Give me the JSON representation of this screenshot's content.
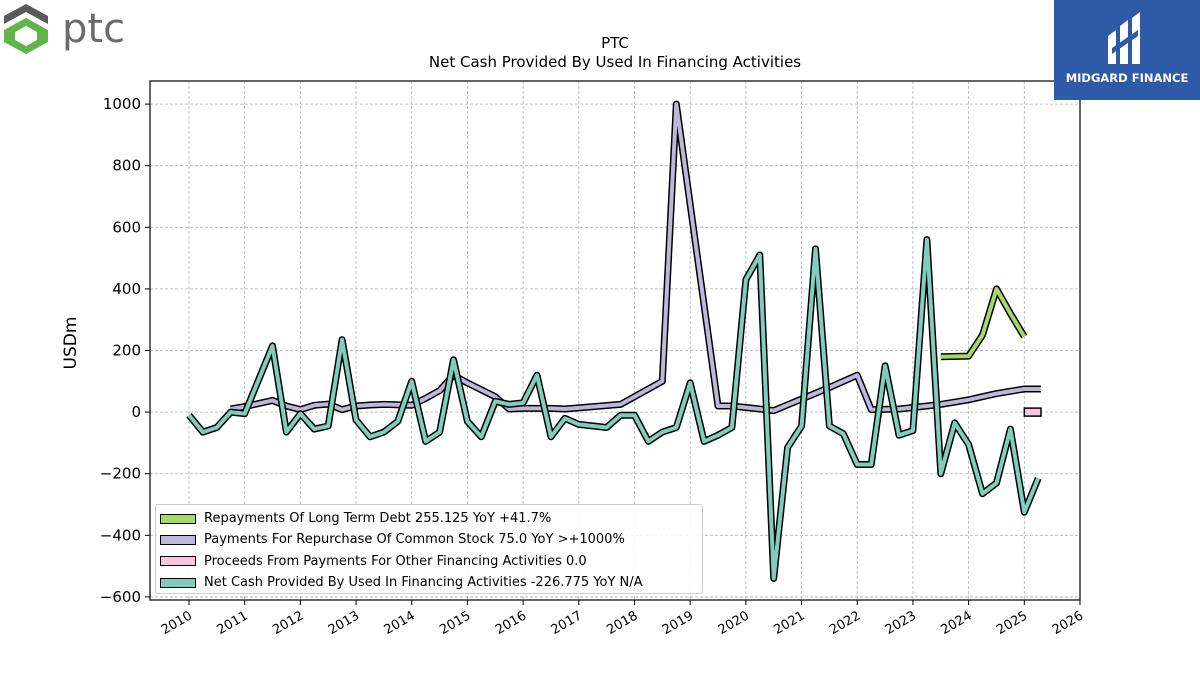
{
  "brand": {
    "left_logo_text": "ptc",
    "right_logo_text": "MIDGARD FINANCE",
    "right_logo_bg": "#2f5aa8"
  },
  "chart_data": {
    "type": "line",
    "title": "PTC",
    "subtitle": "Net Cash Provided By Used In Financing Activities",
    "ylabel": "USDm",
    "xlabel": "",
    "xlim": [
      2009.3,
      2026.0
    ],
    "ylim": [
      -610,
      1075
    ],
    "yticks": [
      -600,
      -400,
      -200,
      0,
      200,
      400,
      600,
      800,
      1000
    ],
    "xticks": [
      2010,
      2011,
      2012,
      2013,
      2014,
      2015,
      2016,
      2017,
      2018,
      2019,
      2020,
      2021,
      2022,
      2023,
      2024,
      2025,
      2026
    ],
    "grid": true,
    "legend_position": "bottom-left",
    "series": [
      {
        "name": "Repayments Of Long Term Debt",
        "legend_label": "Repayments Of Long Term Debt  255.125 YoY +41.7%",
        "color": "#a6d96a",
        "points": [
          [
            2023.5,
            180
          ],
          [
            2024.0,
            182
          ],
          [
            2024.25,
            250
          ],
          [
            2024.5,
            400
          ],
          [
            2024.75,
            320
          ],
          [
            2025.0,
            245
          ]
        ]
      },
      {
        "name": "Payments For Repurchase Of Common Stock",
        "legend_label": "Payments For Repurchase Of Common Stock  75.0 YoY >+1000%",
        "color": "#bcb8d9",
        "points": [
          [
            2010.75,
            10
          ],
          [
            2011.0,
            18
          ],
          [
            2011.5,
            38
          ],
          [
            2011.75,
            20
          ],
          [
            2012.0,
            8
          ],
          [
            2012.25,
            22
          ],
          [
            2012.5,
            26
          ],
          [
            2012.75,
            8
          ],
          [
            2013.0,
            20
          ],
          [
            2013.25,
            23
          ],
          [
            2013.5,
            25
          ],
          [
            2014.0,
            22
          ],
          [
            2014.25,
            45
          ],
          [
            2014.5,
            70
          ],
          [
            2014.75,
            120
          ],
          [
            2015.0,
            95
          ],
          [
            2015.5,
            50
          ],
          [
            2015.75,
            10
          ],
          [
            2016.0,
            12
          ],
          [
            2016.5,
            12
          ],
          [
            2016.75,
            10
          ],
          [
            2017.75,
            25
          ],
          [
            2018.5,
            100
          ],
          [
            2018.75,
            1000
          ],
          [
            2019.5,
            20
          ],
          [
            2019.75,
            20
          ],
          [
            2020.0,
            15
          ],
          [
            2020.5,
            5
          ],
          [
            2021.5,
            80
          ],
          [
            2022.0,
            120
          ],
          [
            2022.25,
            8
          ],
          [
            2022.75,
            10
          ],
          [
            2023.25,
            20
          ],
          [
            2023.5,
            25
          ],
          [
            2024.0,
            40
          ],
          [
            2024.5,
            60
          ],
          [
            2025.0,
            75
          ],
          [
            2025.3,
            75
          ]
        ]
      },
      {
        "name": "Proceeds From Payments For Other Financing Activities",
        "legend_label": "Proceeds From Payments For Other Financing Activities  0.0",
        "color": "#f7c5de",
        "points": [
          [
            2025.0,
            0
          ],
          [
            2025.3,
            0
          ]
        ]
      },
      {
        "name": "Net Cash Provided By Used In Financing Activities",
        "legend_label": "Net Cash Provided By Used In Financing Activities  -226.775 YoY N/A",
        "color": "#7fcdbb",
        "points": [
          [
            2010.0,
            -10
          ],
          [
            2010.25,
            -65
          ],
          [
            2010.5,
            -50
          ],
          [
            2010.75,
            0
          ],
          [
            2011.0,
            -5
          ],
          [
            2011.5,
            215
          ],
          [
            2011.75,
            -65
          ],
          [
            2012.0,
            -5
          ],
          [
            2012.25,
            -55
          ],
          [
            2012.5,
            -45
          ],
          [
            2012.75,
            235
          ],
          [
            2013.0,
            -25
          ],
          [
            2013.25,
            -80
          ],
          [
            2013.5,
            -65
          ],
          [
            2013.75,
            -30
          ],
          [
            2014.0,
            100
          ],
          [
            2014.25,
            -95
          ],
          [
            2014.5,
            -65
          ],
          [
            2014.75,
            170
          ],
          [
            2015.0,
            -30
          ],
          [
            2015.25,
            -80
          ],
          [
            2015.5,
            35
          ],
          [
            2015.75,
            25
          ],
          [
            2016.0,
            30
          ],
          [
            2016.25,
            120
          ],
          [
            2016.5,
            -80
          ],
          [
            2016.75,
            -20
          ],
          [
            2017.0,
            -40
          ],
          [
            2017.5,
            -50
          ],
          [
            2017.75,
            -10
          ],
          [
            2018.0,
            -10
          ],
          [
            2018.25,
            -95
          ],
          [
            2018.5,
            -65
          ],
          [
            2018.75,
            -50
          ],
          [
            2019.0,
            95
          ],
          [
            2019.25,
            -95
          ],
          [
            2019.5,
            -75
          ],
          [
            2019.75,
            -50
          ],
          [
            2020.0,
            430
          ],
          [
            2020.25,
            510
          ],
          [
            2020.5,
            -540
          ],
          [
            2020.75,
            -115
          ],
          [
            2021.0,
            -45
          ],
          [
            2021.25,
            530
          ],
          [
            2021.5,
            -45
          ],
          [
            2021.75,
            -70
          ],
          [
            2022.0,
            -170
          ],
          [
            2022.25,
            -170
          ],
          [
            2022.5,
            150
          ],
          [
            2022.75,
            -75
          ],
          [
            2023.0,
            -60
          ],
          [
            2023.25,
            560
          ],
          [
            2023.5,
            -200
          ],
          [
            2023.75,
            -35
          ],
          [
            2024.0,
            -105
          ],
          [
            2024.25,
            -265
          ],
          [
            2024.5,
            -230
          ],
          [
            2024.75,
            -55
          ],
          [
            2025.0,
            -325
          ],
          [
            2025.25,
            -215
          ]
        ]
      }
    ]
  }
}
